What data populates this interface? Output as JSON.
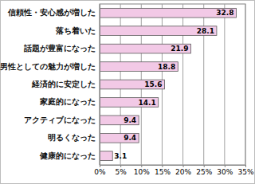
{
  "chart_data": {
    "type": "bar",
    "orientation": "horizontal",
    "categories": [
      "信頼性・安心感が増した",
      "落ち着いた",
      "話題が豊富になった",
      "男性としての魅力が増した",
      "経済的に安定した",
      "家庭的になった",
      "アクティブになった",
      "明るくなった",
      "健康的になった"
    ],
    "values": [
      32.8,
      28.1,
      21.9,
      18.8,
      15.6,
      14.1,
      9.4,
      9.4,
      3.1
    ],
    "color": "#f2c9e6",
    "xlim": [
      0,
      35
    ],
    "xticks": [
      {
        "value": 0,
        "label": "0%"
      },
      {
        "value": 5,
        "label": "5%"
      },
      {
        "value": 10,
        "label": "10%"
      },
      {
        "value": 15,
        "label": "15%"
      },
      {
        "value": 20,
        "label": "20%"
      },
      {
        "value": 25,
        "label": "25%"
      },
      {
        "value": 30,
        "label": "30%"
      },
      {
        "value": 35,
        "label": "35%"
      }
    ],
    "grid": true,
    "data_labels": true
  }
}
